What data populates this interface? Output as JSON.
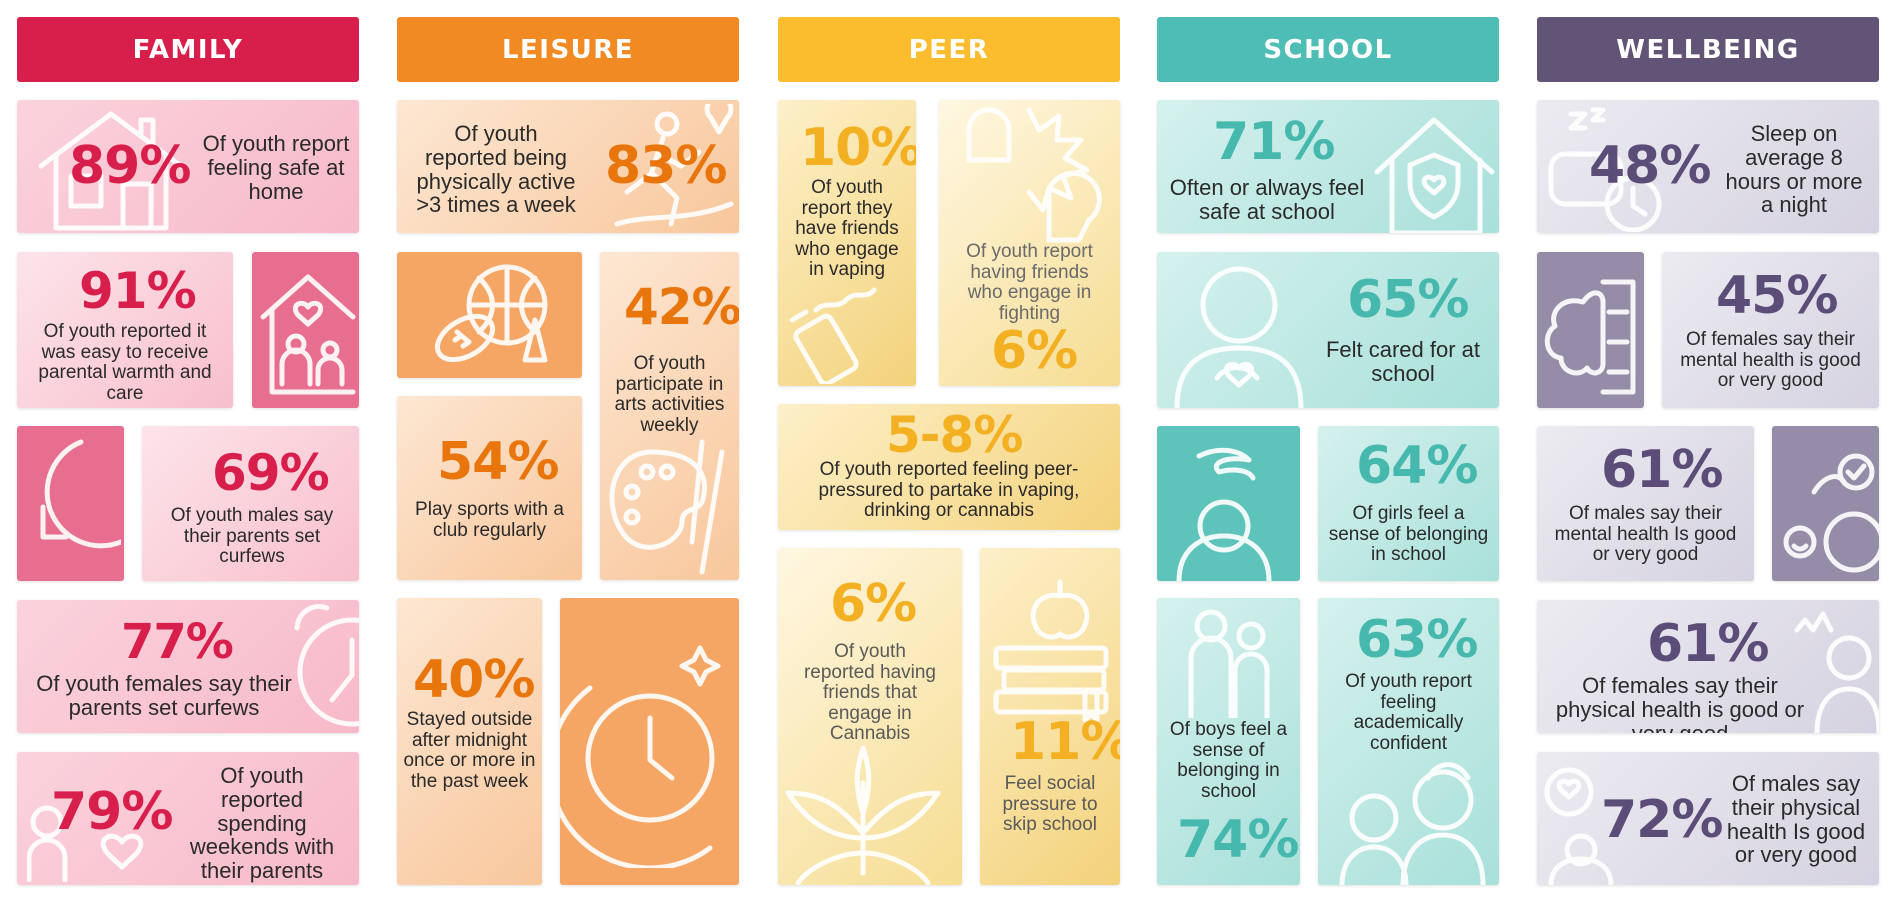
{
  "colors": {
    "family": "#d81e4b",
    "leisure": "#f18a22",
    "peer": "#fbbc2e",
    "school": "#4dbdb5",
    "wellbeing": "#615477"
  },
  "family": {
    "header": "FAMILY",
    "s1": {
      "pct": "89%",
      "text": "Of youth report feeling safe at home"
    },
    "s2": {
      "pct": "91%",
      "text": "Of youth reported it was easy to receive parental warmth and care"
    },
    "s3": {
      "pct": "69%",
      "text": "Of youth males say their parents set curfews"
    },
    "s4": {
      "pct": "77%",
      "text": "Of youth females say their parents set curfews"
    },
    "s5": {
      "pct": "79%",
      "text": "Of youth reported spending weekends with their parents"
    }
  },
  "leisure": {
    "header": "LEISURE",
    "s1": {
      "pct": "83%",
      "text": "Of youth reported being physically active >3 times a week"
    },
    "s2": {
      "pct": "42%",
      "text": "Of youth participate in arts activities weekly"
    },
    "s3": {
      "pct": "54%",
      "text": "Play sports with a club regularly"
    },
    "s4": {
      "pct": "40%",
      "text": "Stayed outside after midnight once or more in the past week"
    }
  },
  "peer": {
    "header": "PEER",
    "s1": {
      "pct": "10%",
      "text": "Of youth report they have friends who engage in vaping"
    },
    "s2": {
      "pct": "6%",
      "text": "Of youth report having friends who engage in fighting"
    },
    "s3": {
      "pct": "5-8%",
      "text": "Of youth reported feeling peer-pressured to partake in vaping, drinking or cannabis"
    },
    "s4": {
      "pct": "6%",
      "text": "Of youth reported having friends that engage in Cannabis"
    },
    "s5": {
      "pct": "11%",
      "text": "Feel social pressure to skip school"
    }
  },
  "school": {
    "header": "SCHOOL",
    "s1": {
      "pct": "71%",
      "text": "Often or always feel safe at school"
    },
    "s2": {
      "pct": "65%",
      "text": "Felt cared for at school"
    },
    "s3": {
      "pct": "64%",
      "text": "Of girls feel a sense of belonging in school"
    },
    "s4": {
      "pct": "74%",
      "text": "Of boys feel a sense of belonging in school"
    },
    "s5": {
      "pct": "63%",
      "text": "Of youth report feeling academically confident"
    }
  },
  "wellbeing": {
    "header": "WELLBEING",
    "s1": {
      "pct": "48%",
      "text": "Sleep on average 8 hours or more a night"
    },
    "s2": {
      "pct": "45%",
      "text": "Of females say their mental health is good or very good"
    },
    "s3": {
      "pct": "61%",
      "text": "Of males say their mental health Is good or very good"
    },
    "s4": {
      "pct": "61%",
      "text": "Of females say their physical health is good or very good"
    },
    "s5": {
      "pct": "72%",
      "text": "Of males say their physical health Is good or very good"
    }
  },
  "icons": [
    "house-icon",
    "family-house-icon",
    "moon-clock-icon",
    "alarm-clock-icon",
    "heart-icon",
    "runner-icon",
    "sports-balls-icon",
    "paint-palette-icon",
    "moon-watch-icon",
    "fist-icon",
    "vape-icon",
    "cannabis-leaf-icon",
    "books-apple-icon",
    "shield-house-icon",
    "self-hug-icon",
    "stressed-person-icon",
    "boy-teacher-icon",
    "teacher-student-icon",
    "sleep-icon",
    "brain-checklist-icon",
    "mental-health-icon",
    "physical-health-icon",
    "heart-bubble-icon"
  ]
}
